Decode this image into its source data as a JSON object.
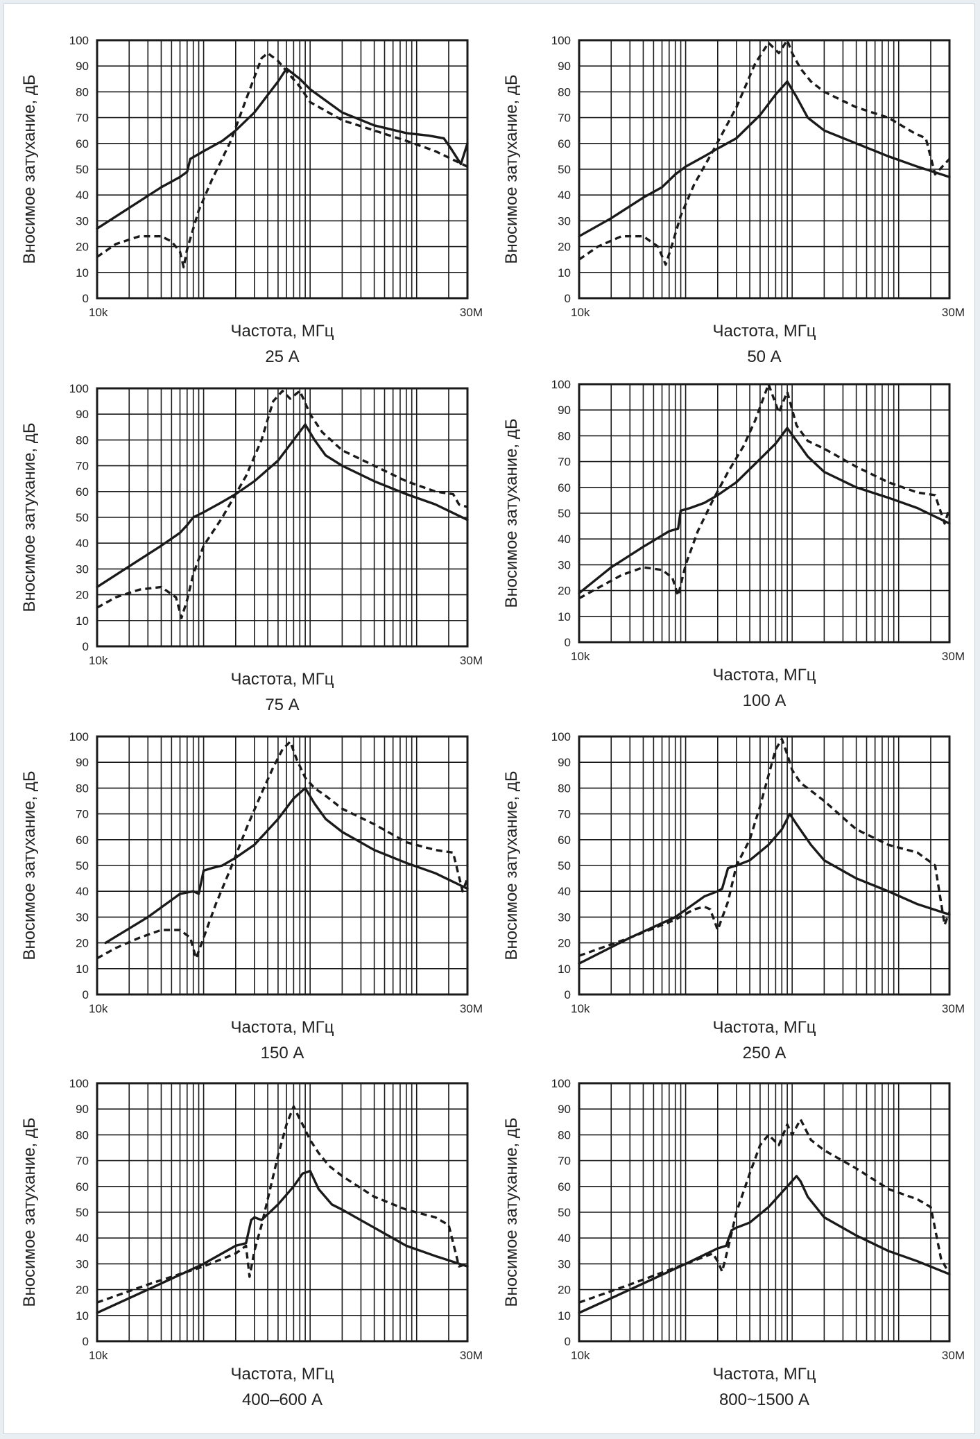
{
  "colors": {
    "background": "#e9eef3",
    "panel": "#ffffff",
    "ink": "#1a1a1a",
    "grid": "#1a1a1a"
  },
  "chart_data": [
    {
      "type": "line",
      "title": "25 А",
      "xlabel": "Частота, МГц",
      "ylabel": "Вносимое затухание, дБ",
      "xscale": "log",
      "xlim": [
        0.01,
        30
      ],
      "ylim": [
        0,
        100
      ],
      "xtick_labels": [
        "10k",
        "30M"
      ],
      "yticks": [
        0,
        10,
        20,
        30,
        40,
        50,
        60,
        70,
        80,
        90,
        100
      ],
      "grid": true,
      "series": [
        {
          "style": "solid",
          "x": [
            0.01,
            0.02,
            0.04,
            0.06,
            0.07,
            0.075,
            0.1,
            0.15,
            0.2,
            0.3,
            0.5,
            0.6,
            0.8,
            1,
            2,
            4,
            8,
            13,
            18,
            21,
            26,
            30
          ],
          "y": [
            27,
            35,
            43,
            47,
            49,
            54,
            57,
            61,
            65,
            72,
            84,
            89,
            85,
            81,
            72,
            67,
            64,
            63,
            62,
            58,
            52,
            60
          ]
        },
        {
          "style": "dashed",
          "x": [
            0.01,
            0.015,
            0.025,
            0.04,
            0.05,
            0.06,
            0.065,
            0.07,
            0.09,
            0.12,
            0.18,
            0.25,
            0.35,
            0.4,
            0.5,
            0.6,
            0.8,
            1,
            2,
            4,
            8,
            15,
            30
          ],
          "y": [
            16,
            21,
            24,
            24,
            22,
            18,
            12,
            19,
            34,
            46,
            61,
            77,
            93,
            95,
            92,
            88,
            82,
            76,
            69,
            65,
            61,
            57,
            51
          ]
        }
      ]
    },
    {
      "type": "line",
      "title": "50 А",
      "xlabel": "Частота, МГц",
      "ylabel": "Вносимое затухание, дБ",
      "xscale": "log",
      "xlim": [
        0.01,
        30
      ],
      "ylim": [
        0,
        100
      ],
      "xtick_labels": [
        "10k",
        "30M"
      ],
      "yticks": [
        0,
        10,
        20,
        30,
        40,
        50,
        60,
        70,
        80,
        90,
        100
      ],
      "grid": true,
      "series": [
        {
          "style": "solid",
          "x": [
            0.01,
            0.02,
            0.04,
            0.06,
            0.08,
            0.1,
            0.15,
            0.2,
            0.3,
            0.5,
            0.7,
            0.9,
            1.1,
            1.4,
            2,
            4,
            8,
            15,
            30
          ],
          "y": [
            24,
            31,
            39,
            43,
            48,
            51,
            55,
            58,
            62,
            71,
            79,
            84,
            78,
            70,
            65,
            60,
            55,
            51,
            47
          ]
        },
        {
          "style": "dashed",
          "x": [
            0.01,
            0.015,
            0.025,
            0.04,
            0.055,
            0.065,
            0.075,
            0.09,
            0.12,
            0.18,
            0.3,
            0.45,
            0.6,
            0.75,
            0.9,
            1,
            1.2,
            1.5,
            2,
            4,
            8,
            14,
            18,
            22,
            30
          ],
          "y": [
            15,
            20,
            24,
            24,
            20,
            13,
            21,
            32,
            44,
            57,
            74,
            91,
            99,
            95,
            100,
            95,
            89,
            84,
            80,
            74,
            70,
            64,
            62,
            48,
            54
          ]
        }
      ]
    },
    {
      "type": "line",
      "title": "75 А",
      "xlabel": "Частота, МГц",
      "ylabel": "Вносимое затухание, дБ",
      "xscale": "log",
      "xlim": [
        0.01,
        30
      ],
      "ylim": [
        0,
        100
      ],
      "xtick_labels": [
        "10k",
        "30M"
      ],
      "yticks": [
        0,
        10,
        20,
        30,
        40,
        50,
        60,
        70,
        80,
        90,
        100
      ],
      "grid": true,
      "series": [
        {
          "style": "solid",
          "x": [
            0.01,
            0.02,
            0.04,
            0.06,
            0.07,
            0.08,
            0.1,
            0.15,
            0.2,
            0.3,
            0.5,
            0.7,
            0.9,
            1.1,
            1.4,
            2,
            4,
            8,
            15,
            30
          ],
          "y": [
            23,
            31,
            39,
            44,
            47,
            50,
            52,
            56,
            59,
            64,
            72,
            80,
            86,
            80,
            74,
            70,
            64,
            59,
            55,
            49
          ]
        },
        {
          "style": "dashed",
          "x": [
            0.01,
            0.015,
            0.025,
            0.04,
            0.055,
            0.062,
            0.07,
            0.08,
            0.1,
            0.15,
            0.25,
            0.35,
            0.45,
            0.55,
            0.65,
            0.8,
            1,
            1.3,
            2,
            4,
            8,
            15,
            22,
            25,
            30
          ],
          "y": [
            15,
            19,
            22,
            23,
            19,
            11,
            18,
            28,
            39,
            50,
            66,
            80,
            95,
            99,
            96,
            99,
            90,
            83,
            76,
            70,
            64,
            60,
            59,
            55,
            54
          ]
        }
      ]
    },
    {
      "type": "line",
      "title": "100 А",
      "xlabel": "Частота, МГц",
      "ylabel": "Вносимое затухание, дБ",
      "xscale": "log",
      "xlim": [
        0.01,
        30
      ],
      "ylim": [
        0,
        100
      ],
      "xtick_labels": [
        "10k",
        "30M"
      ],
      "yticks": [
        0,
        10,
        20,
        30,
        40,
        50,
        60,
        70,
        80,
        90,
        100
      ],
      "grid": true,
      "series": [
        {
          "style": "solid",
          "x": [
            0.01,
            0.02,
            0.04,
            0.07,
            0.085,
            0.09,
            0.11,
            0.15,
            0.2,
            0.3,
            0.5,
            0.7,
            0.9,
            1.1,
            1.4,
            2,
            4,
            8,
            15,
            30
          ],
          "y": [
            19,
            29,
            37,
            43,
            44,
            51,
            52,
            54,
            57,
            62,
            71,
            77,
            83,
            78,
            72,
            66,
            60,
            56,
            52,
            46
          ]
        },
        {
          "style": "dashed",
          "x": [
            0.01,
            0.015,
            0.025,
            0.04,
            0.06,
            0.075,
            0.085,
            0.1,
            0.13,
            0.18,
            0.25,
            0.35,
            0.45,
            0.6,
            0.75,
            0.9,
            1.1,
            1.4,
            2,
            4,
            8,
            15,
            22,
            27,
            30
          ],
          "y": [
            17,
            21,
            26,
            29,
            28,
            25,
            18,
            30,
            43,
            55,
            66,
            76,
            86,
            100,
            89,
            97,
            84,
            78,
            75,
            68,
            62,
            58,
            57,
            46,
            52
          ]
        }
      ]
    },
    {
      "type": "line",
      "title": "150 А",
      "xlabel": "Частота, МГц",
      "ylabel": "Вносимое затухание, дБ",
      "xscale": "log",
      "xlim": [
        0.01,
        30
      ],
      "ylim": [
        0,
        100
      ],
      "xtick_labels": [
        "10k",
        "30M"
      ],
      "yticks": [
        0,
        10,
        20,
        30,
        40,
        50,
        60,
        70,
        80,
        90,
        100
      ],
      "grid": true,
      "series": [
        {
          "style": "solid",
          "x": [
            0.012,
            0.03,
            0.06,
            0.08,
            0.09,
            0.1,
            0.12,
            0.15,
            0.2,
            0.3,
            0.5,
            0.7,
            0.9,
            1.1,
            1.4,
            2,
            4,
            8,
            15,
            30
          ],
          "y": [
            20,
            30,
            39,
            40,
            39,
            48,
            49,
            50,
            53,
            58,
            68,
            76,
            80,
            74,
            68,
            63,
            56,
            51,
            47,
            41
          ]
        },
        {
          "style": "dashed",
          "x": [
            0.01,
            0.015,
            0.025,
            0.04,
            0.06,
            0.075,
            0.085,
            0.1,
            0.13,
            0.18,
            0.25,
            0.35,
            0.45,
            0.55,
            0.65,
            0.75,
            0.9,
            1.1,
            1.4,
            2,
            4,
            8,
            15,
            22,
            27,
            30
          ],
          "y": [
            14,
            18,
            22,
            25,
            25,
            22,
            14,
            22,
            35,
            49,
            64,
            78,
            88,
            95,
            98,
            91,
            84,
            80,
            77,
            72,
            66,
            59,
            56,
            55,
            40,
            45
          ]
        }
      ]
    },
    {
      "type": "line",
      "title": "250 А",
      "xlabel": "Частота, МГц",
      "ylabel": "Вносимое затухание, дБ",
      "xscale": "log",
      "xlim": [
        0.01,
        30
      ],
      "ylim": [
        0,
        100
      ],
      "xtick_labels": [
        "10k",
        "30M"
      ],
      "yticks": [
        0,
        10,
        20,
        30,
        40,
        50,
        60,
        70,
        80,
        90,
        100
      ],
      "grid": true,
      "series": [
        {
          "style": "solid",
          "x": [
            0.01,
            0.03,
            0.08,
            0.15,
            0.2,
            0.22,
            0.25,
            0.3,
            0.4,
            0.6,
            0.8,
            0.95,
            1.1,
            1.5,
            2,
            4,
            8,
            15,
            30
          ],
          "y": [
            12,
            22,
            30,
            38,
            40,
            41,
            49,
            50,
            52,
            58,
            64,
            70,
            66,
            58,
            52,
            45,
            40,
            35,
            31
          ]
        },
        {
          "style": "dashed",
          "x": [
            0.01,
            0.03,
            0.08,
            0.12,
            0.15,
            0.17,
            0.2,
            0.25,
            0.3,
            0.4,
            0.5,
            0.6,
            0.7,
            0.8,
            0.9,
            1,
            1.2,
            1.5,
            2,
            4,
            8,
            15,
            22,
            27,
            30
          ],
          "y": [
            15,
            22,
            29,
            33,
            34,
            33,
            25,
            36,
            50,
            60,
            73,
            85,
            95,
            99,
            93,
            87,
            82,
            79,
            75,
            64,
            58,
            55,
            50,
            27,
            32
          ]
        }
      ]
    },
    {
      "type": "line",
      "title": "400–600 А",
      "xlabel": "Частота, МГц",
      "ylabel": "Вносимое затухание, дБ",
      "xscale": "log",
      "xlim": [
        0.01,
        30
      ],
      "ylim": [
        0,
        100
      ],
      "xtick_labels": [
        "10k",
        "30M"
      ],
      "yticks": [
        0,
        10,
        20,
        30,
        40,
        50,
        60,
        70,
        80,
        90,
        100
      ],
      "grid": true,
      "series": [
        {
          "style": "solid",
          "x": [
            0.01,
            0.03,
            0.1,
            0.2,
            0.25,
            0.28,
            0.3,
            0.35,
            0.5,
            0.7,
            0.85,
            1,
            1.2,
            1.6,
            2,
            4,
            8,
            15,
            30
          ],
          "y": [
            11,
            20,
            30,
            37,
            38,
            47,
            48,
            47,
            53,
            60,
            65,
            66,
            59,
            53,
            51,
            44,
            37,
            33,
            29
          ]
        },
        {
          "style": "dashed",
          "x": [
            0.01,
            0.03,
            0.1,
            0.2,
            0.25,
            0.27,
            0.3,
            0.35,
            0.4,
            0.5,
            0.6,
            0.7,
            0.8,
            0.85,
            1,
            1.2,
            1.5,
            2,
            4,
            8,
            15,
            20,
            25,
            30
          ],
          "y": [
            15,
            22,
            29,
            34,
            37,
            25,
            35,
            45,
            55,
            72,
            84,
            91,
            86,
            84,
            78,
            73,
            68,
            64,
            56,
            51,
            48,
            45,
            29,
            30
          ]
        }
      ]
    },
    {
      "type": "line",
      "title": "800~1500 А",
      "xlabel": "Частота, МГц",
      "ylabel": "Вносимое затухание, дБ",
      "xscale": "log",
      "xlim": [
        0.01,
        30
      ],
      "ylim": [
        0,
        100
      ],
      "xtick_labels": [
        "10k",
        "30M"
      ],
      "yticks": [
        0,
        10,
        20,
        30,
        40,
        50,
        60,
        70,
        80,
        90,
        100
      ],
      "grid": true,
      "series": [
        {
          "style": "solid",
          "x": [
            0.01,
            0.03,
            0.1,
            0.2,
            0.24,
            0.27,
            0.3,
            0.4,
            0.6,
            0.9,
            1.1,
            1.2,
            1.4,
            2,
            4,
            8,
            15,
            30
          ],
          "y": [
            11,
            20,
            30,
            36,
            37,
            43,
            44,
            46,
            52,
            60,
            64,
            62,
            56,
            48,
            41,
            35,
            31,
            26
          ]
        },
        {
          "style": "dashed",
          "x": [
            0.01,
            0.03,
            0.1,
            0.18,
            0.2,
            0.22,
            0.25,
            0.3,
            0.4,
            0.5,
            0.6,
            0.75,
            0.9,
            1,
            1.2,
            1.5,
            2,
            4,
            8,
            15,
            20,
            25,
            30
          ],
          "y": [
            15,
            22,
            30,
            34,
            31,
            27,
            36,
            50,
            65,
            76,
            80,
            76,
            84,
            80,
            86,
            78,
            74,
            67,
            59,
            55,
            52,
            32,
            26
          ]
        }
      ]
    }
  ]
}
